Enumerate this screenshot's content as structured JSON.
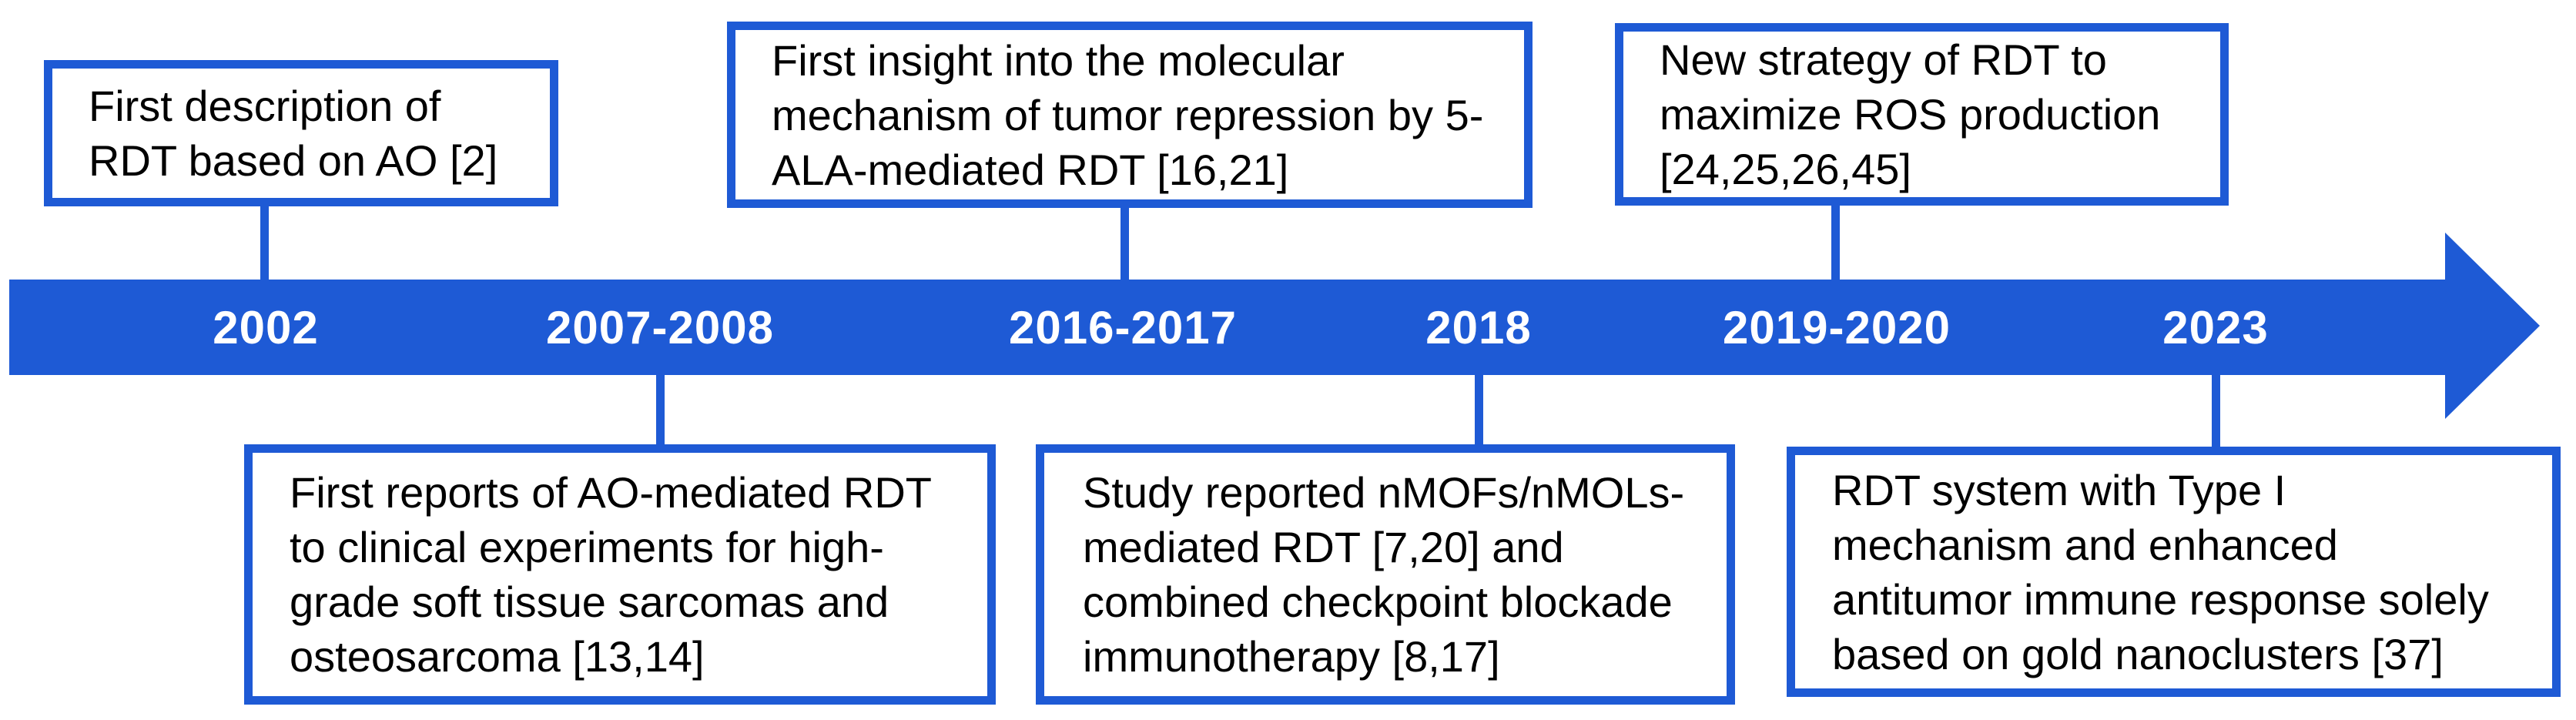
{
  "figure": {
    "type": "timeline",
    "accent_color": "#1E5AD5",
    "box_text_color": "#000000",
    "year_text_color": "#FFFFFF",
    "years": [
      "2002",
      "2007-2008",
      "2016-2017",
      "2018",
      "2019-2020",
      "2023"
    ],
    "events": [
      {
        "year": "2002",
        "position": "above",
        "text": "First description of RDT based on AO [2]"
      },
      {
        "year": "2007-2008",
        "position": "below",
        "text": "First reports of AO-mediated RDT to clinical experiments for high-grade soft tissue sarcomas and osteosarcoma [13,14]"
      },
      {
        "year": "2016-2017",
        "position": "above",
        "text": "First insight into the molecular mechanism of tumor repression by 5-ALA-mediated RDT [16,21]"
      },
      {
        "year": "2018",
        "position": "below",
        "text": "Study reported nMOFs/nMOLs-mediated RDT [7,20] and combined checkpoint blockade immunotherapy [8,17]"
      },
      {
        "year": "2019-2020",
        "position": "above",
        "text": "New strategy of RDT to maximize ROS production [24,25,26,45]"
      },
      {
        "year": "2023",
        "position": "below",
        "text": "RDT system with Type I mechanism and enhanced antitumor immune response solely based on gold nanoclusters [37]"
      }
    ]
  }
}
